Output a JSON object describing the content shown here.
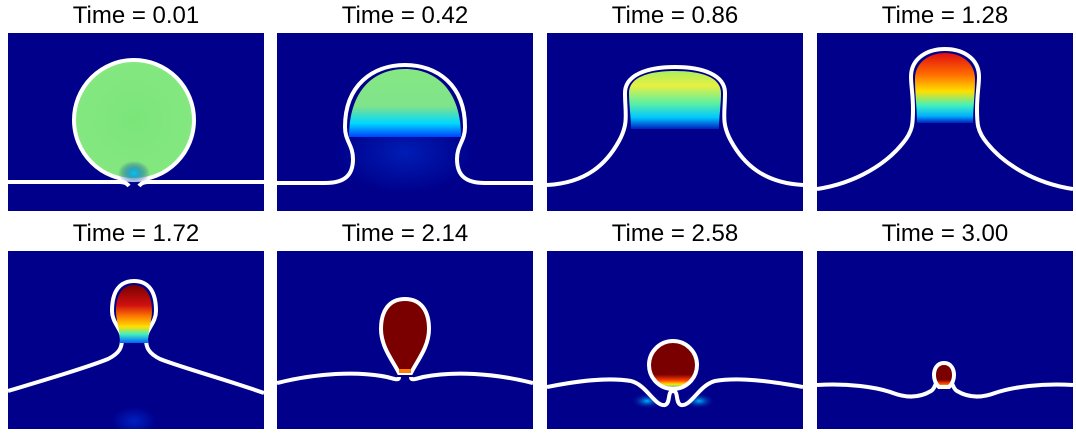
{
  "colors": {
    "background": "#00008b",
    "interface": "#ffffff",
    "colormap": "jet"
  },
  "panels": [
    {
      "title": "Time = 0.01"
    },
    {
      "title": "Time = 0.42"
    },
    {
      "title": "Time = 0.86"
    },
    {
      "title": "Time = 1.28"
    },
    {
      "title": "Time = 1.72"
    },
    {
      "title": "Time = 2.14"
    },
    {
      "title": "Time = 2.58"
    },
    {
      "title": "Time = 3.00"
    }
  ]
}
